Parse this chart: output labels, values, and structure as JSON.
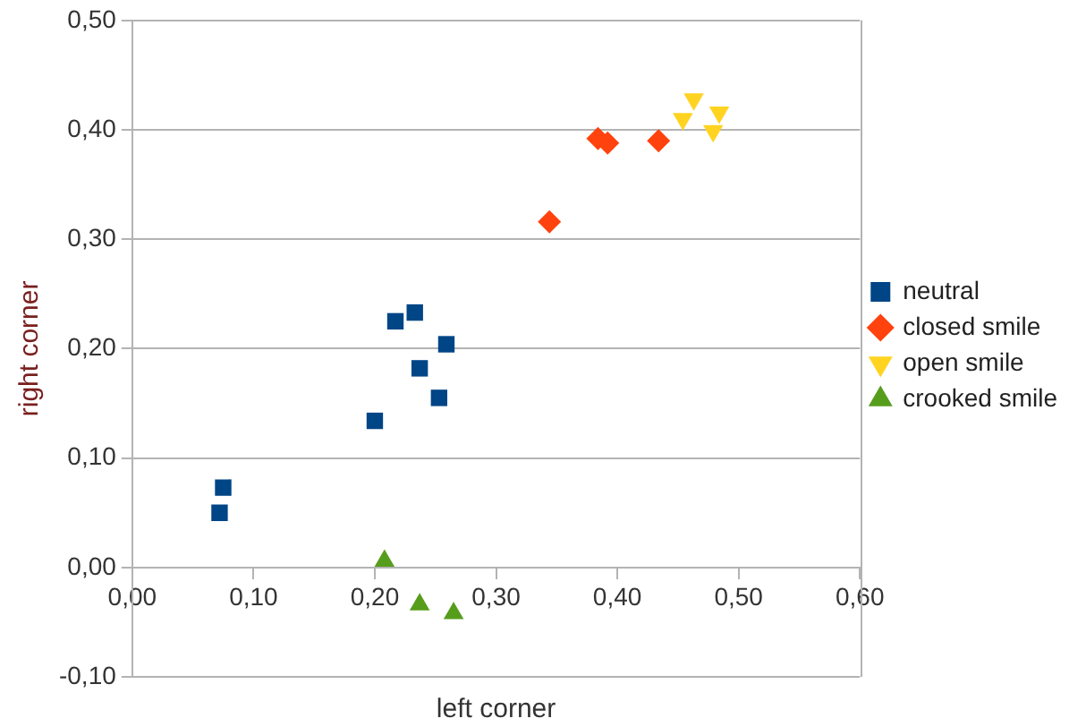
{
  "chart_data": {
    "type": "scatter",
    "xlabel": "left corner",
    "ylabel": "right corner",
    "xlim": [
      0,
      0.6
    ],
    "ylim": [
      -0.1,
      0.5
    ],
    "xticks": [
      {
        "value": 0,
        "label": "0,00"
      },
      {
        "value": 0.1,
        "label": "0,10"
      },
      {
        "value": 0.2,
        "label": "0,20"
      },
      {
        "value": 0.3,
        "label": "0,30"
      },
      {
        "value": 0.4,
        "label": "0,40"
      },
      {
        "value": 0.5,
        "label": "0,50"
      },
      {
        "value": 0.6,
        "label": "0,60"
      }
    ],
    "yticks": [
      {
        "value": -0.1,
        "label": "-0,10"
      },
      {
        "value": 0,
        "label": "0,00"
      },
      {
        "value": 0.1,
        "label": "0,10"
      },
      {
        "value": 0.2,
        "label": "0,20"
      },
      {
        "value": 0.3,
        "label": "0,30"
      },
      {
        "value": 0.4,
        "label": "0,40"
      },
      {
        "value": 0.5,
        "label": "0,50"
      }
    ],
    "grid": "y",
    "legend": "right",
    "series": [
      {
        "name": "neutral",
        "color": "#004586",
        "marker": "square",
        "x": [
          0.072,
          0.075,
          0.2,
          0.217,
          0.233,
          0.237,
          0.259,
          0.253
        ],
        "values": [
          0.05,
          0.073,
          0.134,
          0.225,
          0.233,
          0.182,
          0.204,
          0.155
        ]
      },
      {
        "name": "closed smile",
        "color": "#ff420e",
        "marker": "diamond",
        "x": [
          0.344,
          0.384,
          0.392,
          0.434
        ],
        "values": [
          0.316,
          0.392,
          0.388,
          0.39
        ]
      },
      {
        "name": "open smile",
        "color": "#ffd320",
        "marker": "triangle-down",
        "x": [
          0.463,
          0.454,
          0.484,
          0.479
        ],
        "values": [
          0.428,
          0.41,
          0.416,
          0.399
        ]
      },
      {
        "name": "crooked smile",
        "color": "#579d1c",
        "marker": "triangle",
        "x": [
          0.208,
          0.237,
          0.265
        ],
        "values": [
          0.006,
          -0.034,
          -0.042
        ]
      }
    ]
  }
}
